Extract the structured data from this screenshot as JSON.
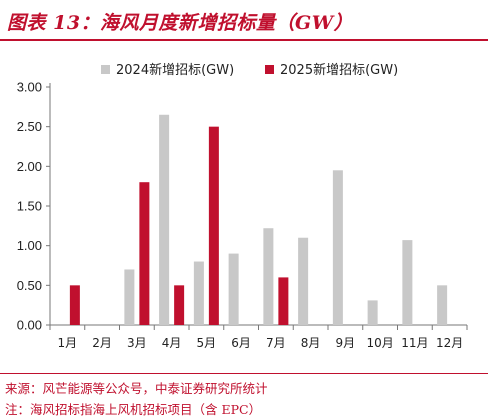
{
  "title": "图表 13：海风月度新增招标量（GW）",
  "footer": {
    "source": "来源：风芒能源等公众号，中泰证券研究所统计",
    "note": "注：海风招标指海上风机招标项目（含 EPC）"
  },
  "colors": {
    "accent": "#c0102e",
    "series_2024": "#c8c8c8",
    "series_2025": "#c0102e"
  },
  "chart_data": {
    "type": "bar",
    "title": "",
    "xlabel": "",
    "ylabel": "",
    "categories": [
      "1月",
      "2月",
      "3月",
      "4月",
      "5月",
      "6月",
      "7月",
      "8月",
      "9月",
      "10月",
      "11月",
      "12月"
    ],
    "series": [
      {
        "name": "2024新增招标(GW)",
        "color": "#c8c8c8",
        "values": [
          0,
          0,
          0.7,
          2.65,
          0.8,
          0.9,
          1.22,
          1.1,
          1.95,
          0.31,
          1.07,
          0.5
        ]
      },
      {
        "name": "2025新增招标(GW)",
        "color": "#c0102e",
        "values": [
          0.5,
          0,
          1.8,
          0.5,
          2.5,
          null,
          0.6,
          null,
          null,
          null,
          null,
          null
        ]
      }
    ],
    "ylim": [
      0,
      3.0
    ],
    "yticks": [
      "0.00",
      "0.50",
      "1.00",
      "1.50",
      "2.00",
      "2.50",
      "3.00"
    ],
    "grid": false,
    "legend": "top"
  }
}
